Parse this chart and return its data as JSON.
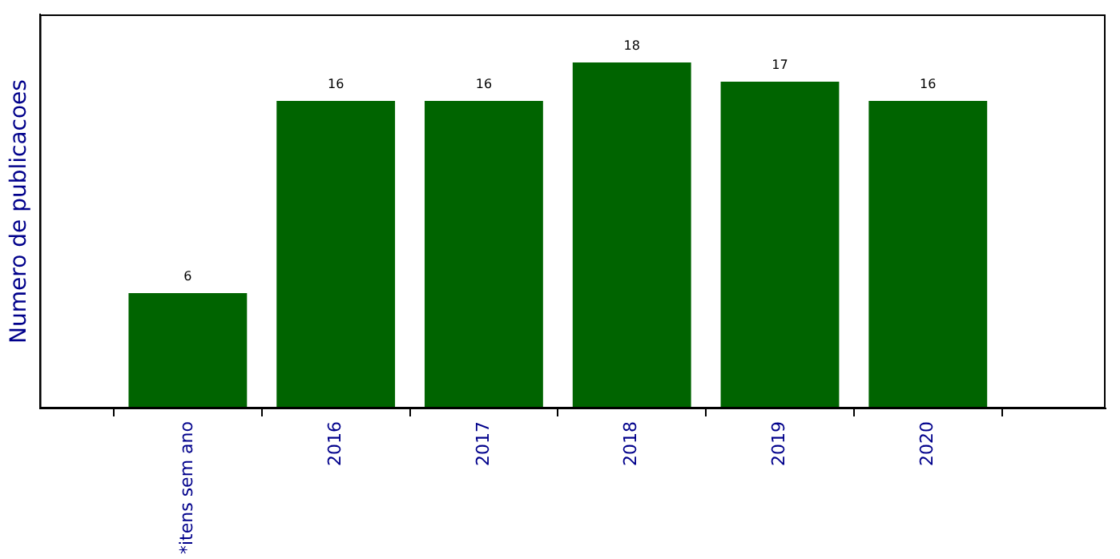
{
  "chart_data": {
    "type": "bar",
    "ylabel": "Numero de publicacoes",
    "categories": [
      "*itens sem ano",
      "2016",
      "2017",
      "2018",
      "2019",
      "2020"
    ],
    "values": [
      6,
      16,
      16,
      18,
      17,
      16
    ],
    "color": "#006400",
    "ylim": [
      0,
      20.5
    ],
    "data_labels": true,
    "tick_labels": "x",
    "grid": false,
    "legend": false
  }
}
